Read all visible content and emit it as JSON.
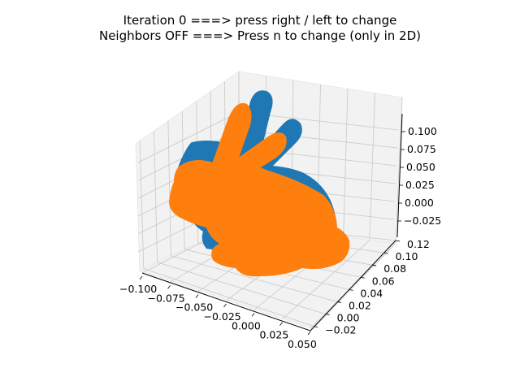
{
  "title": {
    "line1": "Iteration 0 ===> press right / left to change",
    "line2": "Neighbors OFF ===> Press n to change (only in 2D)"
  },
  "colors": {
    "pane_fill": "#f2f2f2",
    "grid": "#c8c8c8",
    "axis_line": "#000000",
    "series_source": "#1f77b4",
    "series_target": "#ff7f0e"
  },
  "chart_data": {
    "type": "scatter",
    "projection": "3d",
    "grid": true,
    "x_ticks": [
      "−0.100",
      "−0.075",
      "−0.050",
      "−0.025",
      "0.000",
      "0.025",
      "0.050"
    ],
    "y_ticks": [
      "−0.02",
      "0.00",
      "0.02",
      "0.04",
      "0.06",
      "0.08",
      "0.10",
      "0.12"
    ],
    "z_ticks": [
      "−0.025",
      "0.000",
      "0.025",
      "0.050",
      "0.075",
      "0.100"
    ],
    "xlim": [
      -0.1,
      0.06
    ],
    "ylim": [
      -0.03,
      0.13
    ],
    "zlim": [
      -0.04,
      0.12
    ],
    "series": [
      {
        "color": "#1f77b4",
        "shape": "bunny point cloud (rotated, behind)"
      },
      {
        "color": "#ff7f0e",
        "shape": "bunny point cloud (front)"
      }
    ]
  }
}
